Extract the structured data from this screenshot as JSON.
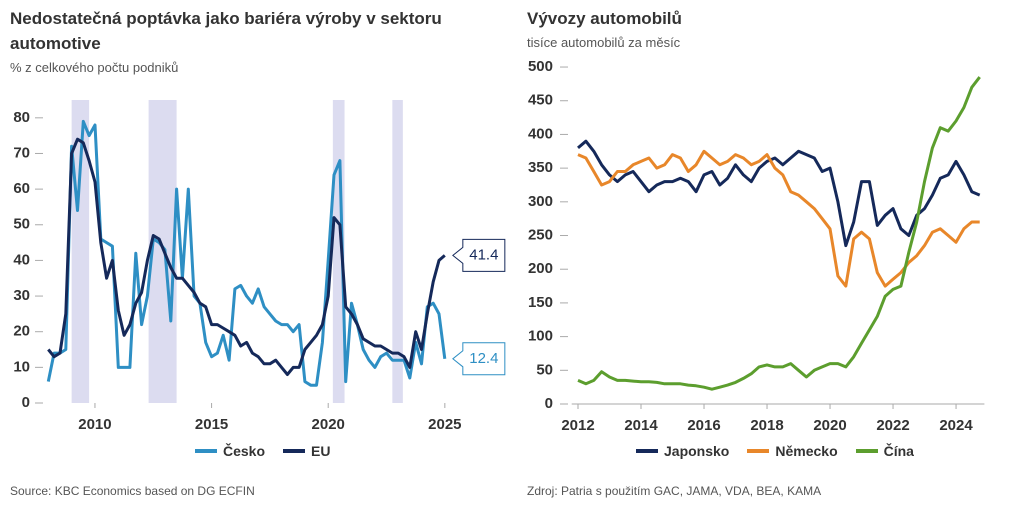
{
  "chart_data": [
    {
      "type": "line",
      "title": "Nedostatečná poptávka jako bariéra výroby v sektoru automotive",
      "subtitle": "% z celkového počtu podniků",
      "source": "Source: KBC Economics based on DG ECFIN",
      "x": [
        2008,
        2008.25,
        2008.5,
        2008.75,
        2009,
        2009.25,
        2009.5,
        2009.75,
        2010,
        2010.25,
        2010.5,
        2010.75,
        2011,
        2011.25,
        2011.5,
        2011.75,
        2012,
        2012.25,
        2012.5,
        2012.75,
        2013,
        2013.25,
        2013.5,
        2013.75,
        2014,
        2014.25,
        2014.5,
        2014.75,
        2015,
        2015.25,
        2015.5,
        2015.75,
        2016,
        2016.25,
        2016.5,
        2016.75,
        2017,
        2017.25,
        2017.5,
        2017.75,
        2018,
        2018.25,
        2018.5,
        2018.75,
        2019,
        2019.25,
        2019.5,
        2019.75,
        2020,
        2020.25,
        2020.5,
        2020.75,
        2021,
        2021.25,
        2021.5,
        2021.75,
        2022,
        2022.25,
        2022.5,
        2022.75,
        2023,
        2023.25,
        2023.5,
        2023.75,
        2024,
        2024.25,
        2024.5,
        2024.75,
        2025
      ],
      "series": [
        {
          "name": "Česko",
          "color": "#2e8fc4",
          "values": [
            6,
            14,
            14,
            15,
            72,
            54,
            79,
            75,
            78,
            46,
            45,
            44,
            10,
            10,
            10,
            42,
            22,
            30,
            46,
            45,
            43,
            23,
            60,
            35,
            60,
            30,
            28,
            17,
            13,
            14,
            19,
            12,
            32,
            33,
            30,
            28,
            32,
            27,
            25,
            23,
            22,
            22,
            20,
            22,
            6,
            5,
            5,
            17,
            40,
            64,
            68,
            6,
            28,
            22,
            15,
            12,
            10,
            13,
            14,
            12,
            12,
            12,
            7,
            17,
            11,
            27,
            28,
            25,
            12.4
          ]
        },
        {
          "name": "EU",
          "color": "#15295a",
          "values": [
            15,
            13,
            14,
            25,
            70,
            74,
            73,
            68,
            62,
            45,
            35,
            40,
            26,
            19,
            22,
            28,
            31,
            40,
            47,
            46,
            42,
            38,
            35,
            35,
            33,
            31,
            28,
            27,
            22,
            22,
            21,
            20,
            19,
            16,
            17,
            14,
            13,
            11,
            11,
            12,
            10,
            8,
            10,
            10,
            15,
            17,
            19,
            22,
            30,
            52,
            50,
            27,
            25,
            22,
            18,
            17,
            16,
            16,
            15,
            14,
            14,
            13,
            10,
            20,
            15,
            25,
            34,
            40,
            41.4
          ]
        }
      ],
      "shaded_periods": [
        [
          2009.0,
          2009.75
        ],
        [
          2012.3,
          2013.5
        ],
        [
          2020.2,
          2020.7
        ],
        [
          2022.75,
          2023.2
        ]
      ],
      "shade_color": "#dcdcf0",
      "xlim": [
        2007.85,
        2025.35
      ],
      "xticks": [
        2010,
        2015,
        2020,
        2025
      ],
      "ylim": [
        0,
        85
      ],
      "yticks": [
        0,
        10,
        20,
        30,
        40,
        50,
        60,
        70,
        80
      ],
      "end_callouts": true,
      "axis_line": false
    },
    {
      "type": "line",
      "title": "Vývozy automobilů",
      "subtitle": "tisíce automobilů za měsíc",
      "source": "Zdroj: Patria s použitím GAC, JAMA, VDA, BEA, KAMA",
      "x": [
        2012,
        2012.25,
        2012.5,
        2012.75,
        2013,
        2013.25,
        2013.5,
        2013.75,
        2014,
        2014.25,
        2014.5,
        2014.75,
        2015,
        2015.25,
        2015.5,
        2015.75,
        2016,
        2016.25,
        2016.5,
        2016.75,
        2017,
        2017.25,
        2017.5,
        2017.75,
        2018,
        2018.25,
        2018.5,
        2018.75,
        2019,
        2019.25,
        2019.5,
        2019.75,
        2020,
        2020.25,
        2020.5,
        2020.75,
        2021,
        2021.25,
        2021.5,
        2021.75,
        2022,
        2022.25,
        2022.5,
        2022.75,
        2023,
        2023.25,
        2023.5,
        2023.75,
        2024,
        2024.25,
        2024.5,
        2024.75
      ],
      "series": [
        {
          "name": "Japonsko",
          "color": "#15295a",
          "values": [
            380,
            390,
            375,
            355,
            340,
            330,
            340,
            345,
            330,
            315,
            325,
            330,
            330,
            335,
            330,
            315,
            340,
            345,
            325,
            335,
            355,
            340,
            330,
            350,
            360,
            365,
            355,
            365,
            375,
            370,
            365,
            345,
            350,
            300,
            235,
            270,
            330,
            330,
            265,
            280,
            290,
            260,
            250,
            280,
            290,
            310,
            335,
            340,
            360,
            340,
            315,
            310
          ]
        },
        {
          "name": "Německo",
          "color": "#e8872a",
          "values": [
            370,
            365,
            345,
            325,
            330,
            345,
            345,
            355,
            360,
            365,
            350,
            355,
            370,
            365,
            345,
            355,
            375,
            365,
            355,
            360,
            370,
            365,
            355,
            360,
            370,
            350,
            340,
            315,
            310,
            300,
            290,
            275,
            260,
            190,
            175,
            245,
            255,
            245,
            195,
            175,
            185,
            195,
            210,
            220,
            235,
            255,
            260,
            250,
            240,
            260,
            270,
            270
          ]
        },
        {
          "name": "Čína",
          "color": "#5c9e2e",
          "values": [
            35,
            30,
            35,
            48,
            40,
            35,
            35,
            34,
            33,
            33,
            32,
            30,
            30,
            30,
            28,
            27,
            25,
            22,
            25,
            28,
            32,
            38,
            45,
            55,
            58,
            55,
            55,
            60,
            50,
            40,
            50,
            55,
            60,
            60,
            55,
            70,
            90,
            110,
            130,
            160,
            170,
            175,
            225,
            270,
            330,
            380,
            410,
            405,
            420,
            440,
            470,
            485
          ]
        }
      ],
      "xlim": [
        2011.8,
        2024.9
      ],
      "xticks": [
        2012,
        2014,
        2016,
        2018,
        2020,
        2022,
        2024
      ],
      "ylim": [
        0,
        510
      ],
      "yticks": [
        0,
        50,
        100,
        150,
        200,
        250,
        300,
        350,
        400,
        450,
        500
      ],
      "end_callouts": false,
      "axis_line": true
    }
  ]
}
